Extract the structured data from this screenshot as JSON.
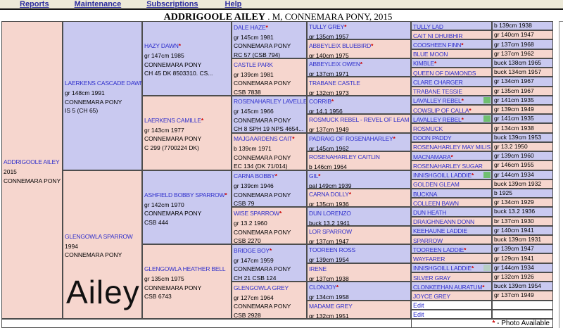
{
  "photo_marker": "*",
  "menu": {
    "items": [
      {
        "label": "Reports"
      },
      {
        "label": "Maintenance"
      },
      {
        "label": "Subscriptions"
      },
      {
        "label": "Help"
      }
    ]
  },
  "title": {
    "name": "ADDRIGOOLE AILEY",
    "suffix": " . M, CONNEMARA PONY, 2015"
  },
  "watermark": "Ailey",
  "footer": {
    "star": "*",
    "label": " - Photo Available"
  },
  "colors": {
    "sire_bg": "#c9c9f0",
    "dam_bg": "#f6d6ce",
    "menu_bg": "#ece9d8",
    "name_link": "#3030cc",
    "photo_star": "#cc0000",
    "flag_green": "#70bf70",
    "flag_pale": "#b7cec3"
  },
  "pedigree": {
    "gen1": [
      {
        "name": "ADDRIGOOLE AILEY",
        "photo": false,
        "details": [
          "2015",
          "CONNEMARA PONY"
        ]
      }
    ],
    "gen2": [
      {
        "name": "LAERKENS CASCADE DAWN",
        "photo": true,
        "details": [
          "gr 148cm 1991",
          "CONNEMARA PONY",
          "IS 5 (CH 65)"
        ]
      },
      {
        "name": "GLENGOWLA SPARROW",
        "photo": false,
        "details": [
          "1994",
          "CONNEMARA PONY"
        ]
      }
    ],
    "gen3": [
      {
        "name": "HAZY DAWN",
        "photo": true,
        "details": [
          "gr 147cm 1985",
          "CONNEMARA PONY",
          "CH 45 DK 8503310. CS..."
        ]
      },
      {
        "name": "LAERKENS CAMILLE",
        "photo": true,
        "details": [
          "gr 143cm 1977",
          "CONNEMARA PONY",
          "C 299 (7700224 DK)"
        ]
      },
      {
        "name": "ASHFIELD BOBBY SPARROW",
        "photo": true,
        "details": [
          "gr 142cm 1970",
          "CONNEMARA PONY",
          "CSB 444"
        ]
      },
      {
        "name": "GLENGOWLA HEATHER BELL",
        "photo": false,
        "details": [
          "gr 135cm 1975",
          "CONNEMARA PONY",
          "CSB 6743"
        ]
      }
    ],
    "gen4": [
      {
        "name": "DALE HAZE",
        "photo": true,
        "details": [
          "gr 145cm 1981",
          "CONNEMARA PONY",
          "RC 57 (CSB 794)"
        ]
      },
      {
        "name": "CASTLE PARK",
        "photo": false,
        "details": [
          "gr 139cm 1981",
          "CONNEMARA PONY",
          "CSB 7838"
        ]
      },
      {
        "name": "ROSENAHARLEY LAVELLE",
        "photo": true,
        "details": [
          "gr 145cm 1966",
          "CONNEMARA PONY",
          "CH 8 SPH 19 NPS 4654..."
        ]
      },
      {
        "name": "MAJGAARDENS CAIT",
        "photo": true,
        "details": [
          "b 139cm 1971",
          "CONNEMARA PONY",
          "EC 134 (DK 71/014)"
        ]
      },
      {
        "name": "CARNA BOBBY",
        "photo": true,
        "details": [
          "gr 139cm 1946",
          "CONNEMARA PONY",
          "CSB 79"
        ]
      },
      {
        "name": "WISE SPARROW",
        "photo": true,
        "details": [
          "gr 13.2 1960",
          "CONNEMARA PONY",
          "CSB 2270"
        ]
      },
      {
        "name": "BRIDGE BOY",
        "photo": true,
        "details": [
          "gr 147cm 1959",
          "CONNEMARA PONY",
          "CH 21 CSB 124"
        ]
      },
      {
        "name": "GLENGOWLA GREY",
        "photo": false,
        "details": [
          "gr 127cm 1964",
          "CONNEMARA PONY",
          "CSB 2928"
        ]
      }
    ],
    "gen5": [
      {
        "name": "TULLY GREY",
        "photo": true,
        "detail": "gr 135cm 1957"
      },
      {
        "name": "ABBEYLEIX BLUEBIRD",
        "photo": true,
        "detail": "gr 140cm 1975"
      },
      {
        "name": "ABBEYLEIX OWEN",
        "photo": true,
        "detail": "gr 137cm 1971"
      },
      {
        "name": "TRABANE CASTLE",
        "photo": false,
        "detail": "gr 132cm 1973"
      },
      {
        "name": "CORRIB",
        "photo": true,
        "detail": "gr 14.1 1956"
      },
      {
        "name": "ROSMUCK REBEL - REVEL OF LEAM",
        "photo": false,
        "detail": "gr 137cm 1949"
      },
      {
        "name": "PADRAIG OF ROSENAHARLEY",
        "photo": true,
        "detail": "gr 145cm 1962"
      },
      {
        "name": "ROSENAHARLEY CAITLIN",
        "photo": false,
        "detail": "b 146cm 1964"
      },
      {
        "name": "GIL",
        "photo": true,
        "detail": "pal 149cm 1939"
      },
      {
        "name": "CARNA DOLLY",
        "photo": true,
        "detail": "gr 135cm 1936"
      },
      {
        "name": "DUN LORENZO",
        "photo": false,
        "detail": "buck 13.2 1941"
      },
      {
        "name": "LOR SPARROW",
        "photo": false,
        "detail": "gr 137cm 1947"
      },
      {
        "name": "TOOREEN ROSS",
        "photo": false,
        "detail": "gr 139cm 1954"
      },
      {
        "name": "IRENE",
        "photo": false,
        "detail": "gr 137cm 1938"
      },
      {
        "name": "CLONJOY",
        "photo": true,
        "detail": "gr 134cm 1958"
      },
      {
        "name": "MADAME GREY",
        "photo": false,
        "detail": "gr 132cm 1951"
      }
    ],
    "gen6": [
      {
        "name": "TULLY LAD",
        "photo": false,
        "detail": "b 139cm 1938"
      },
      {
        "name": "CAIT NI DHUIBHIR",
        "photo": false,
        "detail": "gr 140cm 1947"
      },
      {
        "name": "COOSHEEN FINN",
        "photo": true,
        "detail": "gr 137cm 1968"
      },
      {
        "name": "BLUE MOON",
        "photo": false,
        "detail": "gr 137cm 1962"
      },
      {
        "name": "KIMBLE",
        "photo": true,
        "detail": "buck 138cm 1965"
      },
      {
        "name": "QUEEN OF DIAMONDS",
        "photo": false,
        "detail": "buck 134cm 1957"
      },
      {
        "name": "CLARE CHARGER",
        "photo": false,
        "detail": "gr 134cm 1967"
      },
      {
        "name": "TRABANE TESSIE",
        "photo": false,
        "detail": "gr 135cm 1967"
      },
      {
        "name": "LAVALLEY REBEL",
        "photo": true,
        "flag": "green",
        "detail": "gr 141cm 1935"
      },
      {
        "name": "COWSLIP OF CALLA",
        "photo": true,
        "detail": "gr 139cm 1949"
      },
      {
        "name": "LAVALLEY REBEL",
        "photo": true,
        "flag": "green",
        "detail": "gr 141cm 1935"
      },
      {
        "name": "ROSMUCK",
        "photo": false,
        "detail": "gr 134cm 1938"
      },
      {
        "name": "DOON PADDY",
        "photo": false,
        "detail": "buck 139cm 1953"
      },
      {
        "name": "ROSENAHARLEY MAY MILIS",
        "photo": false,
        "detail": "gr 13.2 1950"
      },
      {
        "name": "MACNAMARA",
        "photo": true,
        "detail": "gr 139cm 1960"
      },
      {
        "name": "ROSENAHARLEY SUGAR",
        "photo": false,
        "detail": "gr 146cm 1955"
      },
      {
        "name": "INNISHGOILL LADDIE",
        "photo": true,
        "flag": "green",
        "detail": "gr 144cm 1934"
      },
      {
        "name": "GOLDEN GLEAM",
        "photo": false,
        "detail": "buck 139cm 1932"
      },
      {
        "name": "BUCKNA",
        "photo": false,
        "detail": "b 1925"
      },
      {
        "name": "COLLEEN BAWN",
        "photo": false,
        "detail": "gr 134cm 1929"
      },
      {
        "name": "DUN HEATH",
        "photo": false,
        "detail": "buck 13.2 1936"
      },
      {
        "name": "DRAIGHNEANN DONN",
        "photo": false,
        "detail": "br 137cm 1930"
      },
      {
        "name": "KEEHAUNE LADDIE",
        "photo": false,
        "detail": "gr 140cm 1941"
      },
      {
        "name": "SPARROW",
        "photo": false,
        "detail": "buck 139cm 1931"
      },
      {
        "name": "TOOREEN LADDIE",
        "photo": true,
        "detail": "gr 139cm 1947"
      },
      {
        "name": "WAYFARER",
        "photo": false,
        "detail": "gr 129cm 1941"
      },
      {
        "name": "INNISHGOILL LADDIE",
        "photo": true,
        "flag": "pale",
        "detail": "gr 144cm 1934"
      },
      {
        "name": "SILVER GRAY",
        "photo": false,
        "detail": "gr 132cm 1926"
      },
      {
        "name": "CLONKEEHAN AURATUM",
        "photo": true,
        "detail": "buck 139cm 1954"
      },
      {
        "name": "JOYCE GREY",
        "photo": false,
        "detail": "gr 137cm 1949"
      },
      {
        "name": "Edit",
        "edit": true,
        "detail": ""
      },
      {
        "name": "Edit",
        "edit": true,
        "detail": ""
      }
    ]
  }
}
